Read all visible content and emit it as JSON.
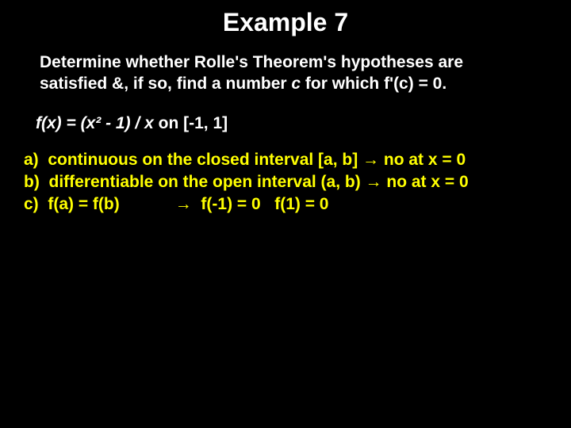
{
  "colors": {
    "background": "#000000",
    "title_text": "#ffffff",
    "prompt_text": "#ffffff",
    "equation_text": "#ffffff",
    "answer_text": "#ffff00"
  },
  "typography": {
    "title_fontsize": 32,
    "body_fontsize": 21,
    "font_family": "Arial",
    "title_weight": "bold",
    "body_weight": "bold"
  },
  "title": "Example 7",
  "prompt_line1": "Determine whether Rolle's Theorem's hypotheses are",
  "prompt_line2_part1": "satisfied &, if so, find a number ",
  "prompt_line2_c": "c",
  "prompt_line2_part2": " for which f'(c) = 0.",
  "equation_lhs": "f(x) = (x² - 1) / x",
  "equation_on": " on ",
  "equation_interval": "[-1, 1]",
  "answers": {
    "a_label": "a)  ",
    "a_text": "continuous on the closed interval [a, b] ",
    "a_arrow": "→",
    "a_result": " no at x = 0",
    "b_label": "b)  ",
    "b_text": "differentiable on the open interval (a, b) ",
    "b_arrow": "→",
    "b_result": " no at x = 0",
    "c_label": "c)  ",
    "c_text": "f(a) = f(b)            ",
    "c_arrow": "→",
    "c_result": "  f(-1) = 0   f(1) = 0"
  }
}
